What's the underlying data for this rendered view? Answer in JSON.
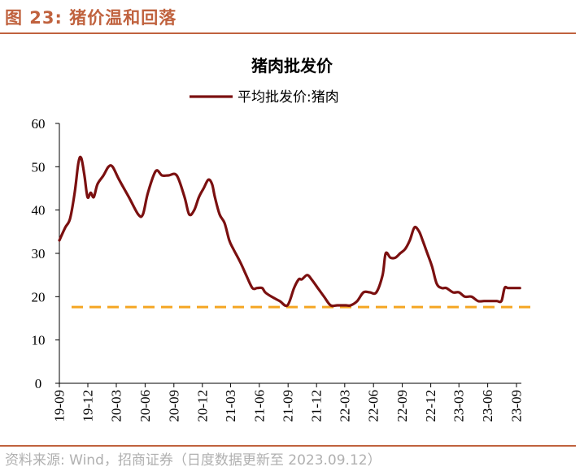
{
  "figure": {
    "title": "图 23:  猪价温和回落",
    "source": "资料来源:  Wind，招商证券（日度数据更新至 2023.09.12）"
  },
  "colors": {
    "accent": "#c0623e",
    "series_line": "#7b1010",
    "reference_line": "#f5a623",
    "source_text": "#b0b0b0"
  },
  "chart_data": {
    "type": "line",
    "title": "猪肉批发价",
    "xlabel": "",
    "ylabel": "",
    "ylim": [
      0,
      60
    ],
    "yticks": [
      0,
      10,
      20,
      30,
      40,
      50,
      60
    ],
    "x_tick_labels": [
      "19-09",
      "19-12",
      "20-03",
      "20-06",
      "20-09",
      "20-12",
      "21-03",
      "21-06",
      "21-09",
      "21-12",
      "22-03",
      "22-06",
      "22-09",
      "22-12",
      "23-03",
      "23-06",
      "23-09"
    ],
    "grid": false,
    "legend_position": "top-center",
    "series": [
      {
        "name": "平均批发价:猪肉",
        "x": [
          "2019-09-01",
          "2019-09-20",
          "2019-10-05",
          "2019-10-20",
          "2019-11-01",
          "2019-11-10",
          "2019-11-20",
          "2019-11-30",
          "2019-12-10",
          "2019-12-20",
          "2020-01-01",
          "2020-01-20",
          "2020-02-05",
          "2020-02-18",
          "2020-03-10",
          "2020-04-10",
          "2020-05-10",
          "2020-05-25",
          "2020-06-10",
          "2020-07-05",
          "2020-07-25",
          "2020-08-15",
          "2020-09-10",
          "2020-10-05",
          "2020-10-20",
          "2020-11-05",
          "2020-11-20",
          "2020-12-05",
          "2020-12-20",
          "2021-01-01",
          "2021-01-10",
          "2021-01-25",
          "2021-02-10",
          "2021-02-25",
          "2021-03-10",
          "2021-04-01",
          "2021-04-20",
          "2021-05-10",
          "2021-05-25",
          "2021-06-10",
          "2021-06-20",
          "2021-07-10",
          "2021-08-05",
          "2021-08-30",
          "2021-09-20",
          "2021-10-05",
          "2021-10-15",
          "2021-11-01",
          "2021-11-15",
          "2021-12-05",
          "2021-12-25",
          "2022-01-15",
          "2022-02-05",
          "2022-02-20",
          "2022-03-05",
          "2022-03-20",
          "2022-04-10",
          "2022-04-30",
          "2022-05-20",
          "2022-06-10",
          "2022-06-30",
          "2022-07-10",
          "2022-07-25",
          "2022-08-10",
          "2022-08-25",
          "2022-09-10",
          "2022-09-25",
          "2022-10-10",
          "2022-10-25",
          "2022-11-05",
          "2022-11-20",
          "2022-12-05",
          "2022-12-20",
          "2023-01-05",
          "2023-01-20",
          "2023-02-10",
          "2023-03-01",
          "2023-03-20",
          "2023-04-10",
          "2023-05-01",
          "2023-05-20",
          "2023-06-10",
          "2023-06-30",
          "2023-07-15",
          "2023-07-25",
          "2023-08-05",
          "2023-08-25",
          "2023-09-12"
        ],
        "values": [
          33,
          36,
          38,
          44,
          51,
          52,
          48,
          43,
          44,
          43,
          46,
          48,
          50,
          50,
          47,
          43,
          39,
          39,
          44,
          49,
          48,
          48,
          48,
          43,
          39,
          40,
          43,
          45,
          47,
          46,
          43,
          39,
          37,
          33,
          31,
          28,
          25,
          22,
          22,
          22,
          21,
          20,
          19,
          18,
          22,
          24,
          24,
          25,
          24,
          22,
          20,
          18,
          18,
          18,
          18,
          18,
          19,
          21,
          21,
          21,
          25,
          30,
          29,
          29,
          30,
          31,
          33,
          36,
          35,
          33,
          30,
          27,
          23,
          22,
          22,
          21,
          21,
          20,
          20,
          19,
          19,
          19,
          19,
          19,
          22,
          22,
          22,
          22
        ]
      }
    ],
    "reference_line": {
      "y": 17.6,
      "style": "dashed"
    }
  }
}
